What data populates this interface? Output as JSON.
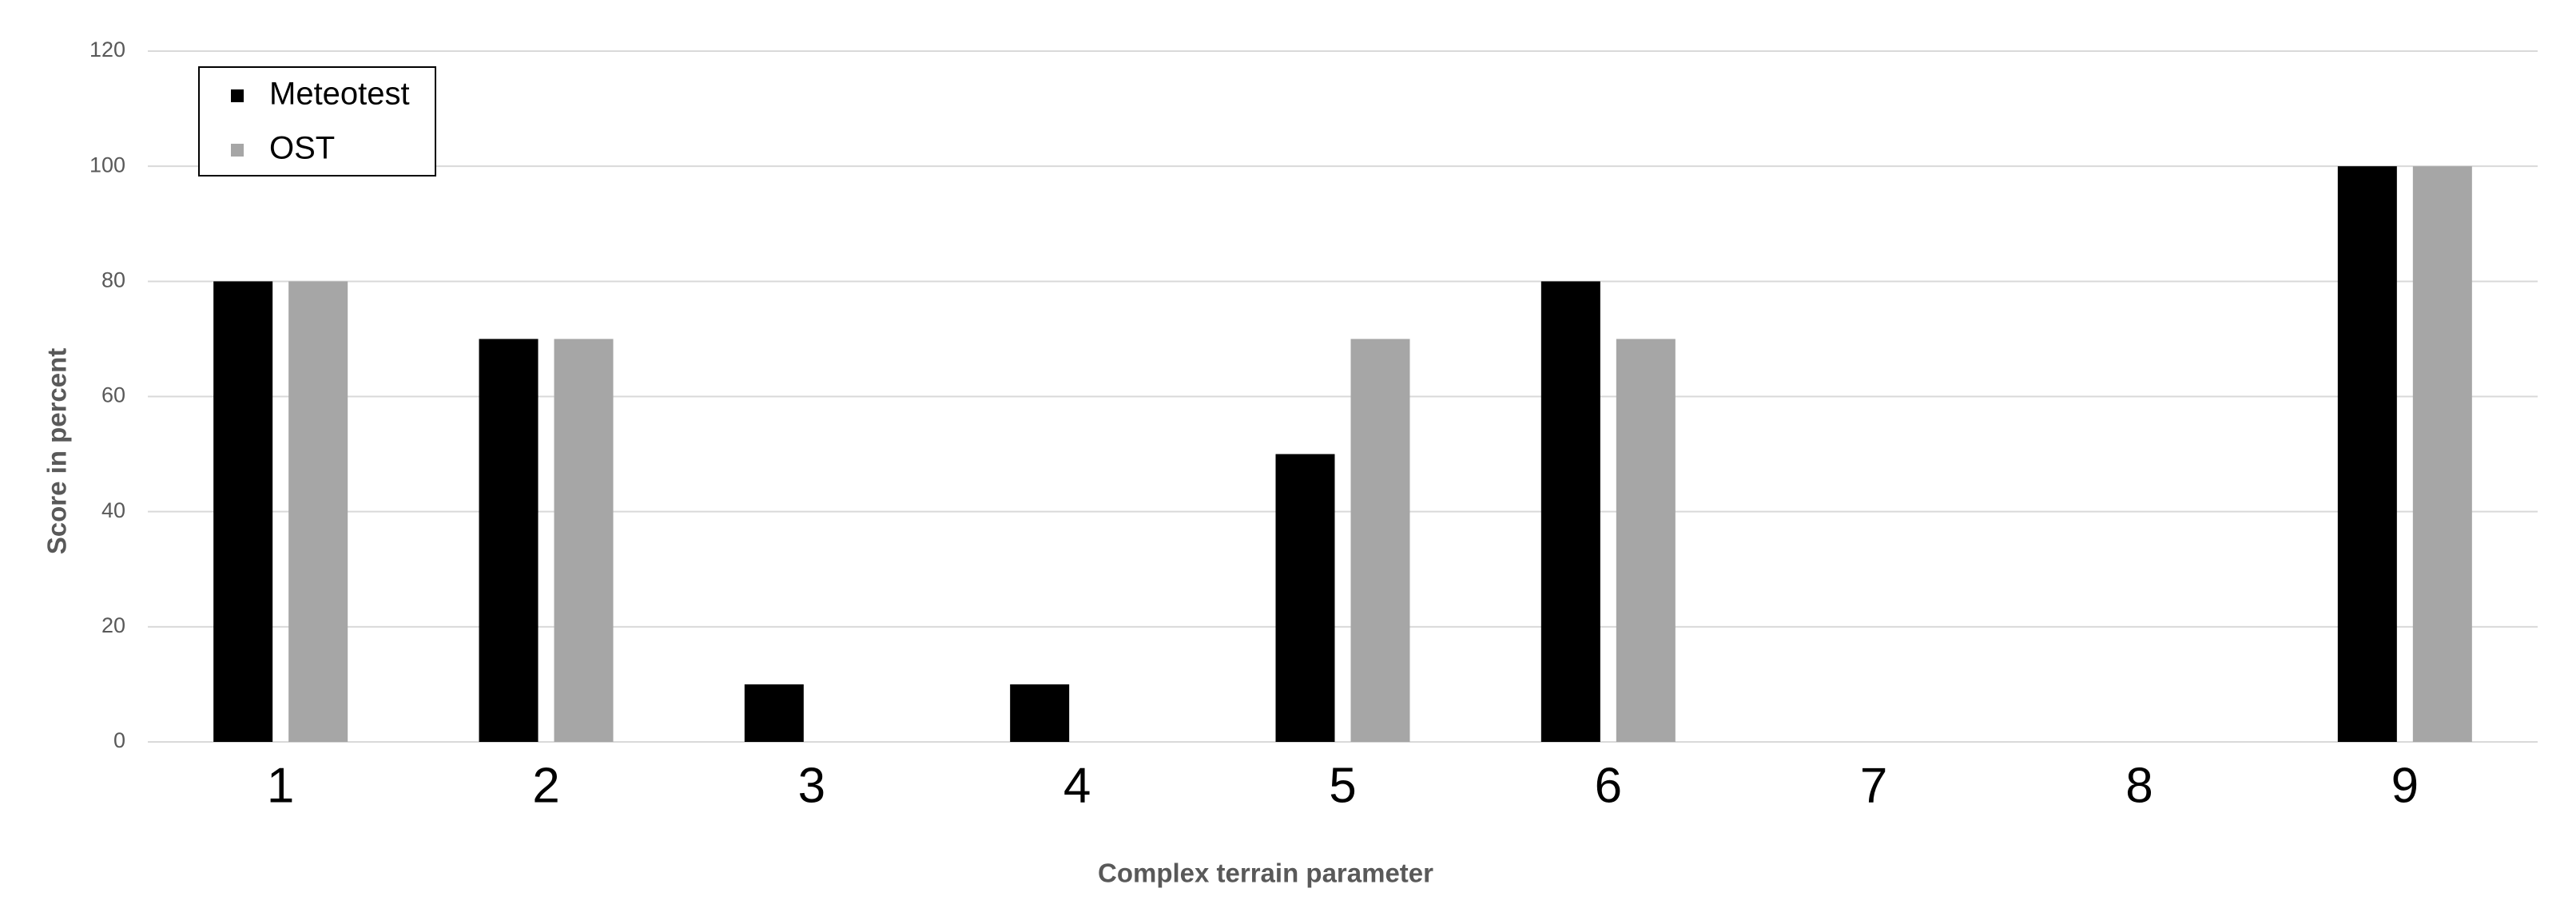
{
  "chart_data": {
    "type": "bar",
    "x_label": "Complex terrain parameter",
    "y_label": "Score in percent",
    "categories": [
      "1",
      "2",
      "3",
      "4",
      "5",
      "6",
      "7",
      "8",
      "9"
    ],
    "series": [
      {
        "name": "Meteotest",
        "color": "#000000",
        "values": [
          80,
          70,
          10,
          10,
          50,
          80,
          0,
          0,
          100
        ]
      },
      {
        "name": "OST",
        "color": "#a6a6a6",
        "values": [
          80,
          70,
          0,
          0,
          70,
          70,
          0,
          0,
          100
        ]
      }
    ],
    "ylim": [
      0,
      120
    ],
    "yticks": [
      0,
      20,
      40,
      60,
      80,
      100,
      120
    ],
    "grid": true,
    "legend": "upper left"
  }
}
